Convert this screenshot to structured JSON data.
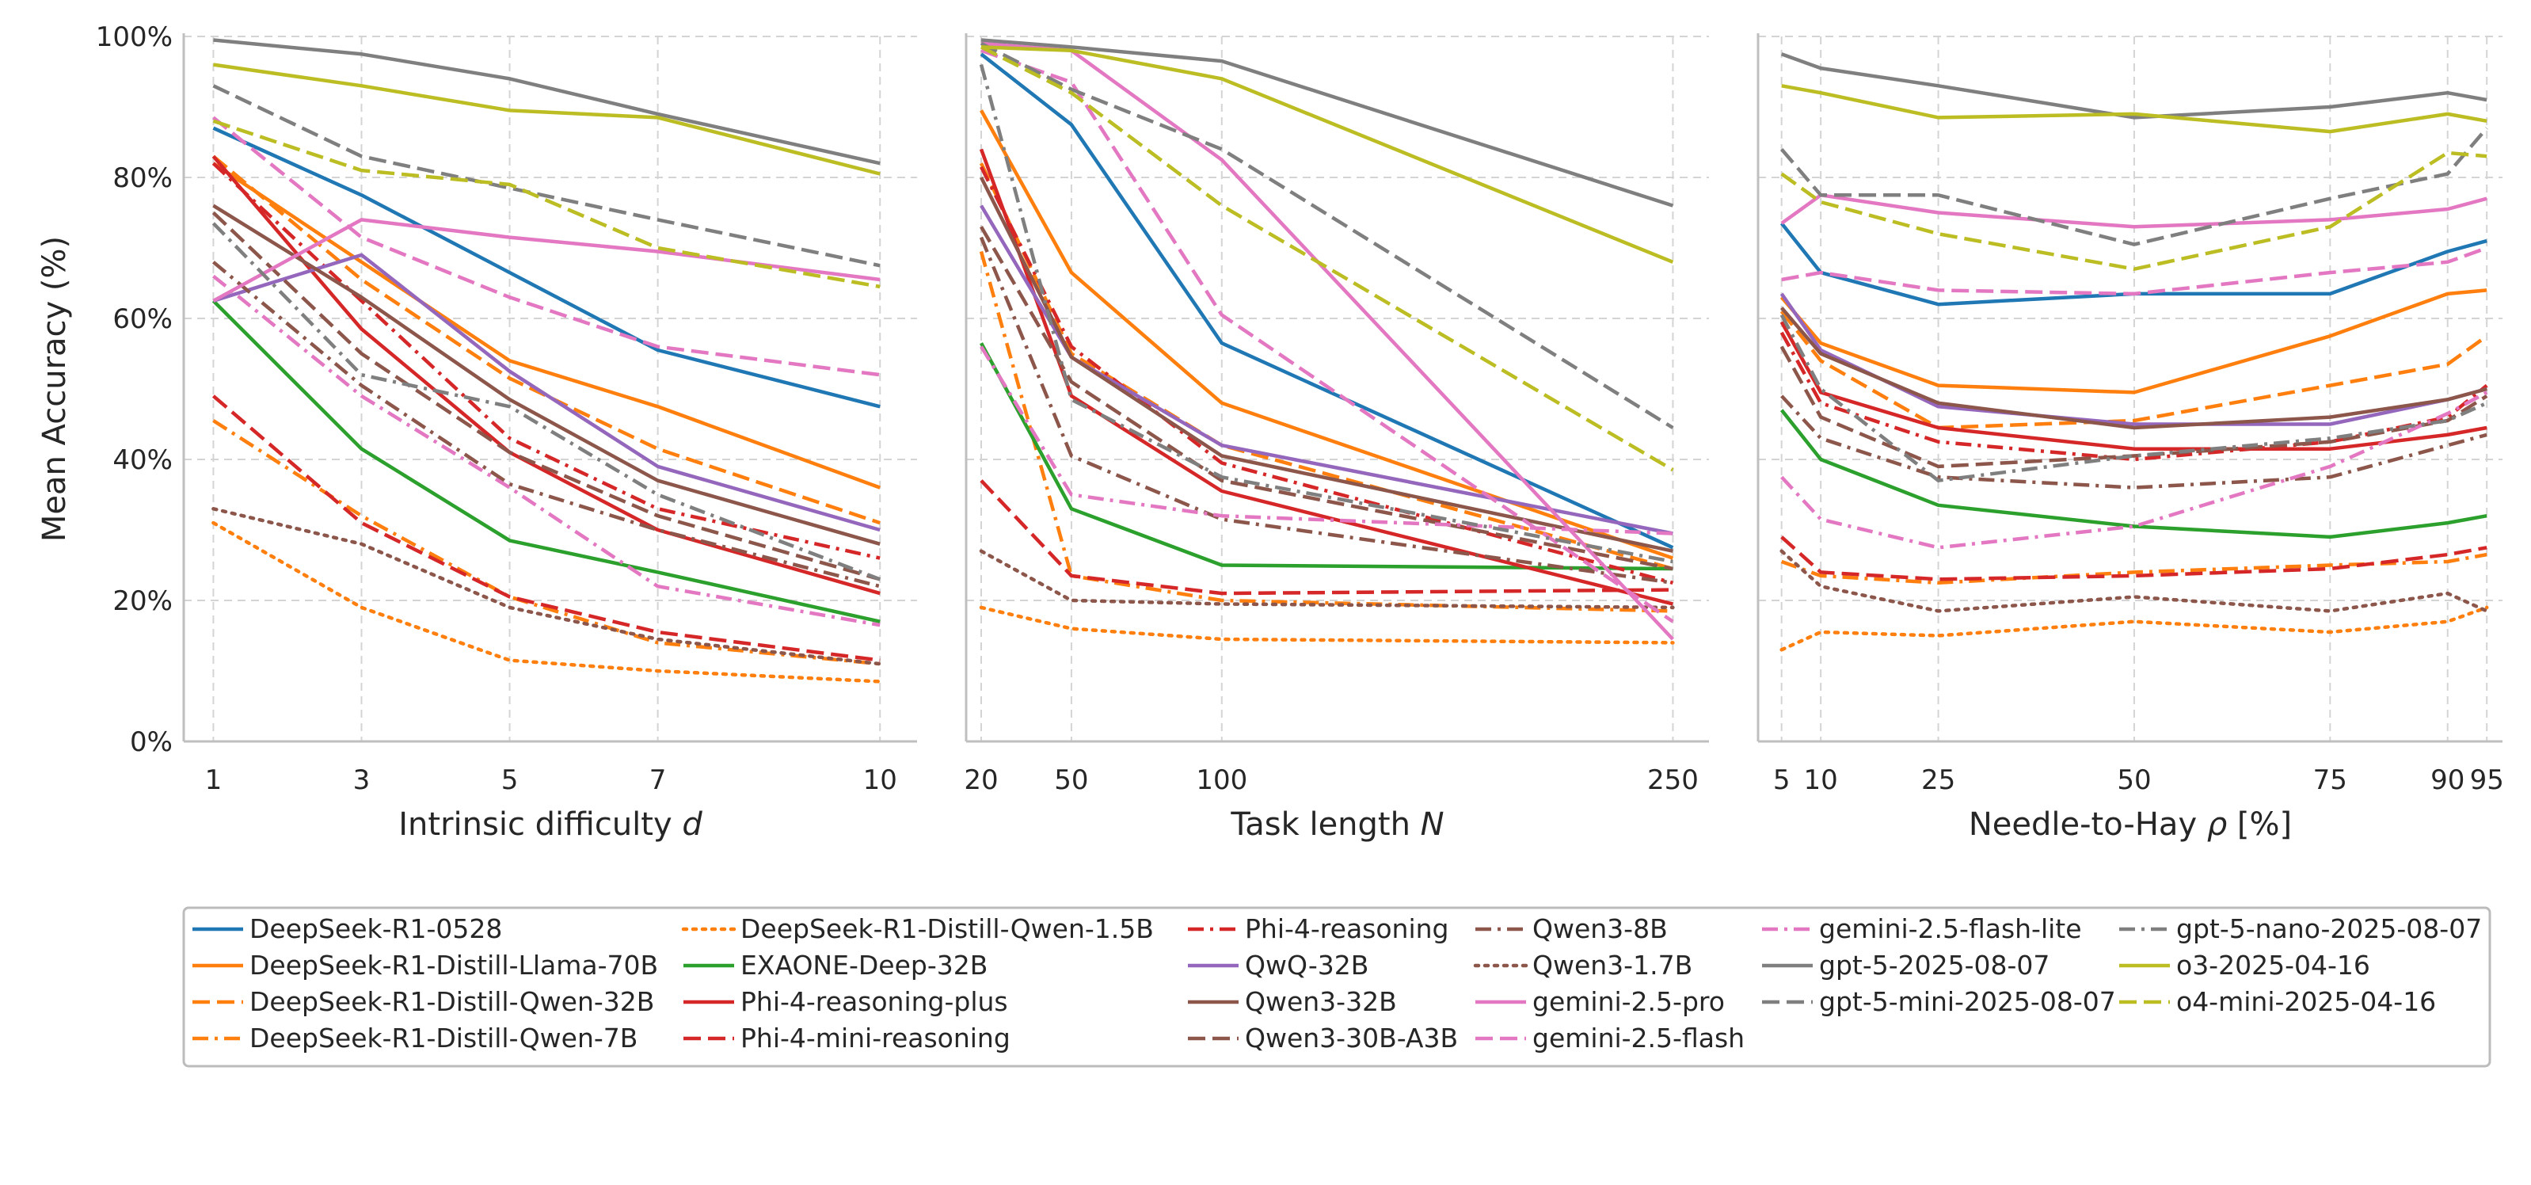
{
  "chart_data": [
    {
      "type": "line",
      "panel": "difficulty",
      "xlabel": "Intrinsic difficulty d",
      "xlabel_main": "Intrinsic difficulty ",
      "xlabel_var": "d",
      "ylabel": "Mean Accuracy (%)",
      "x": [
        1,
        3,
        5,
        7,
        10
      ],
      "x_ticks": [
        1,
        3,
        5,
        7,
        10
      ],
      "xlim": [
        0.6,
        10.5
      ],
      "ylim": [
        0,
        100
      ],
      "y_ticks": [
        "0%",
        "20%",
        "40%",
        "60%",
        "80%",
        "100%"
      ],
      "grid": true
    },
    {
      "type": "line",
      "panel": "task-length",
      "xlabel": "Task length N",
      "xlabel_main": "Task length ",
      "xlabel_var": "N",
      "x": [
        20,
        50,
        100,
        250
      ],
      "x_ticks": [
        20,
        50,
        100,
        250
      ],
      "xlim": [
        15,
        262
      ],
      "ylim": [
        0,
        100
      ],
      "grid": true
    },
    {
      "type": "line",
      "panel": "needle-to-hay",
      "xlabel": "Needle-to-Hay ρ [%]",
      "xlabel_main": "Needle-to-Hay ",
      "xlabel_var": "ρ",
      "xlabel_tail": " [%]",
      "x": [
        5,
        10,
        25,
        50,
        75,
        90,
        95
      ],
      "x_ticks": [
        5,
        10,
        25,
        50,
        75,
        90,
        95
      ],
      "xlim": [
        2,
        97
      ],
      "ylim": [
        0,
        100
      ],
      "grid": true
    }
  ],
  "series": [
    {
      "name": "DeepSeek-R1-0528",
      "color": "#1f77b4",
      "dash": "solid",
      "d": [
        87,
        77.5,
        66.5,
        55.5,
        47.5
      ],
      "N": [
        97.5,
        87.5,
        56.5,
        27.5
      ],
      "rho": [
        73.5,
        66.5,
        62,
        63.5,
        63.5,
        69.5,
        71
      ]
    },
    {
      "name": "DeepSeek-R1-Distill-Llama-70B",
      "color": "#ff7f0e",
      "dash": "solid",
      "d": [
        82,
        68,
        54,
        47.5,
        36
      ],
      "N": [
        89.5,
        66.5,
        48,
        26
      ],
      "rho": [
        63,
        56.5,
        50.5,
        49.5,
        57.5,
        63.5,
        64
      ]
    },
    {
      "name": "DeepSeek-R1-Distill-Qwen-32B",
      "color": "#ff7f0e",
      "dash": "dash",
      "d": [
        83,
        65.5,
        51.5,
        41.5,
        31
      ],
      "N": [
        82,
        55,
        42,
        24.5
      ],
      "rho": [
        61,
        54,
        44.5,
        45.5,
        50.5,
        53.5,
        57.5
      ]
    },
    {
      "name": "DeepSeek-R1-Distill-Qwen-7B",
      "color": "#ff7f0e",
      "dash": "dashdot",
      "d": [
        45.5,
        32,
        20.5,
        14,
        11
      ],
      "N": [
        69.5,
        23.5,
        20,
        18.5
      ],
      "rho": [
        25.5,
        23.5,
        22.5,
        24,
        25,
        25.5,
        26.5
      ]
    },
    {
      "name": "DeepSeek-R1-Distill-Qwen-1.5B",
      "color": "#ff7f0e",
      "dash": "dot",
      "d": [
        31,
        19,
        11.5,
        10,
        8.5
      ],
      "N": [
        19,
        16,
        14.5,
        14
      ],
      "rho": [
        13,
        15.5,
        15,
        17,
        15.5,
        17,
        19
      ]
    },
    {
      "name": "EXAONE-Deep-32B",
      "color": "#2ca02c",
      "dash": "solid",
      "d": [
        62.5,
        41.5,
        28.5,
        24,
        17
      ],
      "N": [
        56.5,
        33,
        25,
        24.5
      ],
      "rho": [
        47,
        40,
        33.5,
        30.5,
        29,
        31,
        32
      ]
    },
    {
      "name": "Phi-4-reasoning-plus",
      "color": "#d62728",
      "dash": "solid",
      "d": [
        83,
        58.5,
        41,
        30,
        21
      ],
      "N": [
        84,
        49,
        35.5,
        19.5
      ],
      "rho": [
        59.5,
        49.5,
        44.5,
        41.5,
        41.5,
        43.5,
        44.5
      ]
    },
    {
      "name": "Phi-4-mini-reasoning",
      "color": "#d62728",
      "dash": "dash",
      "d": [
        49,
        31,
        20.5,
        15.5,
        11.5
      ],
      "N": [
        37,
        23.5,
        21,
        21.5
      ],
      "rho": [
        29,
        24,
        23,
        23.5,
        24.5,
        26.5,
        27.5
      ]
    },
    {
      "name": "Phi-4-reasoning",
      "color": "#d62728",
      "dash": "dashdot",
      "d": [
        82,
        62.5,
        43,
        33,
        26
      ],
      "N": [
        81.5,
        56,
        39.5,
        22.5
      ],
      "rho": [
        58,
        48,
        42.5,
        40,
        42.5,
        46,
        50.5
      ]
    },
    {
      "name": "QwQ-32B",
      "color": "#9467bd",
      "dash": "solid",
      "d": [
        62.5,
        69,
        52.5,
        39,
        30
      ],
      "N": [
        76,
        54.5,
        42,
        29.5
      ],
      "rho": [
        63.5,
        55.5,
        47.5,
        45,
        45,
        48.5,
        50
      ]
    },
    {
      "name": "Qwen3-32B",
      "color": "#8c564b",
      "dash": "solid",
      "d": [
        76,
        63,
        48.5,
        37,
        28
      ],
      "N": [
        80,
        54.5,
        40.5,
        27
      ],
      "rho": [
        61.5,
        55,
        48,
        44.5,
        46,
        48.5,
        50
      ]
    },
    {
      "name": "Qwen3-30B-A3B",
      "color": "#8c564b",
      "dash": "dash",
      "d": [
        75,
        55,
        41,
        32,
        23
      ],
      "N": [
        73,
        51,
        37,
        24.5
      ],
      "rho": [
        56,
        46,
        39,
        40.5,
        42.5,
        45.5,
        49
      ]
    },
    {
      "name": "Qwen3-8B",
      "color": "#8c564b",
      "dash": "dashdot",
      "d": [
        68,
        50.5,
        36.5,
        30,
        22
      ],
      "N": [
        71.5,
        40.5,
        31.5,
        22.5
      ],
      "rho": [
        49,
        43,
        37.5,
        36,
        37.5,
        42,
        43.5
      ]
    },
    {
      "name": "Qwen3-1.7B",
      "color": "#8c564b",
      "dash": "dot",
      "d": [
        33,
        28,
        19,
        14.5,
        11
      ],
      "N": [
        27,
        20,
        19.5,
        19
      ],
      "rho": [
        27,
        22,
        18.5,
        20.5,
        18.5,
        21,
        18.5
      ]
    },
    {
      "name": "gemini-2.5-pro",
      "color": "#e377c2",
      "dash": "solid",
      "d": [
        62.5,
        74,
        71.5,
        69.5,
        65.5
      ],
      "N": [
        99,
        98,
        82.5,
        14.5
      ],
      "rho": [
        73.5,
        77.5,
        75,
        73,
        74,
        75.5,
        77
      ]
    },
    {
      "name": "gemini-2.5-flash",
      "color": "#e377c2",
      "dash": "dash",
      "d": [
        88.5,
        71.5,
        63,
        56,
        52
      ],
      "N": [
        98,
        93.5,
        60.5,
        17
      ],
      "rho": [
        65.5,
        66.5,
        64,
        63.5,
        66.5,
        68,
        70
      ]
    },
    {
      "name": "gemini-2.5-flash-lite",
      "color": "#e377c2",
      "dash": "dashdot",
      "d": [
        66,
        49,
        36,
        22,
        16.5
      ],
      "N": [
        56,
        35,
        32,
        29.5
      ],
      "rho": [
        37.5,
        31.5,
        27.5,
        30.5,
        39,
        46.5,
        49.5
      ]
    },
    {
      "name": "gpt-5-2025-08-07",
      "color": "#7f7f7f",
      "dash": "solid",
      "d": [
        99.5,
        97.5,
        94,
        89,
        82
      ],
      "N": [
        99.5,
        98.5,
        96.5,
        76
      ],
      "rho": [
        97.5,
        95.5,
        93,
        88.5,
        90,
        92,
        91
      ]
    },
    {
      "name": "gpt-5-mini-2025-08-07",
      "color": "#7f7f7f",
      "dash": "dash",
      "d": [
        93,
        83,
        78.5,
        74,
        67.5
      ],
      "N": [
        99,
        92.5,
        84,
        44.5
      ],
      "rho": [
        84,
        77.5,
        77.5,
        70.5,
        77,
        80.5,
        87
      ]
    },
    {
      "name": "gpt-5-nano-2025-08-07",
      "color": "#7f7f7f",
      "dash": "dashdot",
      "d": [
        73.5,
        52,
        47.5,
        35,
        23
      ],
      "N": [
        96,
        48.5,
        37.5,
        25.5
      ],
      "rho": [
        60.5,
        50,
        37,
        40.5,
        43,
        45.5,
        48
      ]
    },
    {
      "name": "o3-2025-04-16",
      "color": "#bcbd22",
      "dash": "solid",
      "d": [
        96,
        93,
        89.5,
        88.5,
        80.5
      ],
      "N": [
        98.5,
        98,
        94,
        68
      ],
      "rho": [
        93,
        92,
        88.5,
        89,
        86.5,
        89,
        88
      ]
    },
    {
      "name": "o4-mini-2025-04-16",
      "color": "#bcbd22",
      "dash": "dash",
      "d": [
        88,
        81,
        79,
        70,
        64.5
      ],
      "N": [
        98.5,
        92,
        76,
        38.5
      ],
      "rho": [
        80.5,
        76.5,
        72,
        67,
        73,
        83.5,
        83
      ]
    }
  ],
  "legend": {
    "placement": "bottom",
    "columns": [
      [
        "DeepSeek-R1-0528",
        "DeepSeek-R1-Distill-Llama-70B",
        "DeepSeek-R1-Distill-Qwen-32B",
        "DeepSeek-R1-Distill-Qwen-7B"
      ],
      [
        "DeepSeek-R1-Distill-Qwen-1.5B",
        "EXAONE-Deep-32B",
        "Phi-4-reasoning-plus",
        "Phi-4-mini-reasoning"
      ],
      [
        "Phi-4-reasoning",
        "QwQ-32B",
        "Qwen3-32B",
        "Qwen3-30B-A3B"
      ],
      [
        "Qwen3-8B",
        "Qwen3-1.7B",
        "gemini-2.5-pro",
        "gemini-2.5-flash"
      ],
      [
        "gemini-2.5-flash-lite",
        "gpt-5-2025-08-07",
        "gpt-5-mini-2025-08-07"
      ],
      [
        "gpt-5-nano-2025-08-07",
        "o3-2025-04-16",
        "o4-mini-2025-04-16"
      ]
    ]
  }
}
